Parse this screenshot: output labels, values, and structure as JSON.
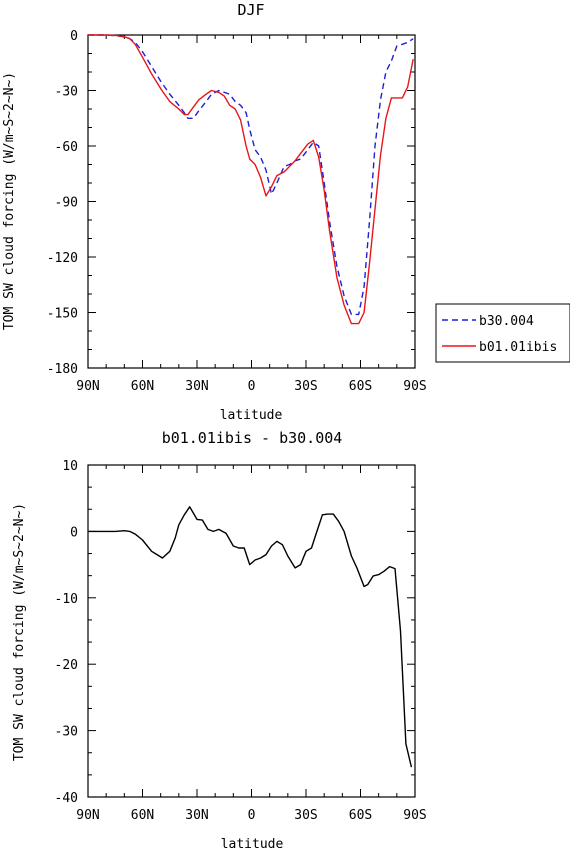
{
  "chart_data": [
    {
      "type": "line",
      "title": "DJF",
      "xlabel": "latitude",
      "ylabel": "TOM SW cloud forcing (W/m~S~2~N~)",
      "xlim": [
        90,
        -90
      ],
      "ylim": [
        -180,
        0
      ],
      "x_ticks": [
        90,
        60,
        30,
        0,
        -30,
        -60,
        -90
      ],
      "x_tick_labels": [
        "90N",
        "60N",
        "30N",
        "0",
        "30S",
        "60S",
        "90S"
      ],
      "y_ticks": [
        0,
        -30,
        -60,
        -90,
        -120,
        -150,
        -180
      ],
      "y_tick_labels": [
        "0",
        "-30",
        "-60",
        "-90",
        "-120",
        "-150",
        "-180"
      ],
      "legend_position": "outside-right",
      "series": [
        {
          "name": "b30.004",
          "color": "#1f1fd6",
          "style": "dashed",
          "x": [
            90,
            80,
            75,
            70,
            67,
            64,
            60,
            55,
            50,
            45,
            40,
            37,
            35,
            32,
            29,
            25,
            22,
            18,
            15,
            12,
            9,
            6,
            3,
            1,
            -2,
            -5,
            -8,
            -11,
            -14,
            -18,
            -21,
            -24,
            -27,
            -31,
            -34,
            -37,
            -40,
            -43,
            -47,
            -51,
            -55,
            -59,
            -62,
            -65,
            -68,
            -71,
            -74,
            -77,
            -80,
            -83,
            -86,
            -89
          ],
          "y": [
            0,
            0,
            -0.3,
            -1,
            -2,
            -4,
            -9,
            -17,
            -25,
            -32,
            -38,
            -42,
            -45,
            -45,
            -41,
            -36,
            -32,
            -30,
            -31,
            -32,
            -36,
            -38,
            -42,
            -51,
            -62,
            -66,
            -73,
            -86,
            -80,
            -71,
            -70,
            -68,
            -67,
            -62,
            -58,
            -60,
            -80,
            -101,
            -125,
            -141,
            -151,
            -151,
            -136,
            -100,
            -60,
            -35,
            -20,
            -14,
            -6,
            -5,
            -4,
            -2
          ]
        },
        {
          "name": "b01.01ibis",
          "color": "#e8161a",
          "style": "solid",
          "x": [
            90,
            80,
            75,
            70,
            67,
            64,
            60,
            55,
            50,
            45,
            40,
            37,
            35,
            32,
            29,
            25,
            22,
            18,
            15,
            12,
            9,
            6,
            3,
            1,
            -2,
            -5,
            -8,
            -11,
            -14,
            -18,
            -21,
            -24,
            -27,
            -31,
            -34,
            -37,
            -40,
            -43,
            -47,
            -51,
            -55,
            -59,
            -62,
            -65,
            -68,
            -71,
            -74,
            -77,
            -80,
            -83,
            -86,
            -89
          ],
          "y": [
            0,
            0,
            -0.2,
            -0.9,
            -2,
            -5,
            -12,
            -21,
            -29,
            -36,
            -40,
            -43,
            -43,
            -39,
            -35,
            -32,
            -30,
            -31,
            -33,
            -38,
            -40,
            -46,
            -60,
            -67,
            -70,
            -77,
            -87,
            -82,
            -76,
            -74,
            -71,
            -68,
            -64,
            -59,
            -57,
            -66,
            -84,
            -106,
            -131,
            -146,
            -156,
            -156,
            -150,
            -123,
            -94,
            -65,
            -45,
            -34,
            -34,
            -34,
            -28,
            -13
          ]
        }
      ]
    },
    {
      "type": "line",
      "title": "b01.01ibis - b30.004",
      "xlabel": "latitude",
      "ylabel": "TOM SW cloud forcing (W/m~S~2~N~)",
      "xlim": [
        90,
        -90
      ],
      "ylim": [
        -40,
        10
      ],
      "x_ticks": [
        90,
        60,
        30,
        0,
        -30,
        -60,
        -90
      ],
      "x_tick_labels": [
        "90N",
        "60N",
        "30N",
        "0",
        "30S",
        "60S",
        "90S"
      ],
      "y_ticks": [
        10,
        0,
        -10,
        -20,
        -30,
        -40
      ],
      "y_tick_labels": [
        "10",
        "0",
        "-10",
        "-20",
        "-30",
        "-40"
      ],
      "series": [
        {
          "color": "#000000",
          "style": "solid",
          "x": [
            90,
            80,
            75,
            70,
            67,
            64,
            60,
            55,
            52,
            49,
            45,
            42,
            40,
            37,
            34,
            30,
            27,
            24,
            21,
            18,
            14,
            10,
            7,
            4,
            1,
            -2,
            -5,
            -8,
            -11,
            -14,
            -17,
            -20,
            -24,
            -27,
            -30,
            -33,
            -36,
            -39,
            -42,
            -45,
            -48,
            -51,
            -55,
            -58,
            -62,
            -64,
            -67,
            -70,
            -73,
            -76,
            -79,
            -82,
            -85,
            -88
          ],
          "y": [
            0,
            0,
            0,
            0.1,
            0,
            -0.4,
            -1.3,
            -3,
            -3.5,
            -4,
            -3,
            -1,
            1,
            2.5,
            3.7,
            1.8,
            1.7,
            0.3,
            0,
            0.3,
            -0.3,
            -2.2,
            -2.5,
            -2.5,
            -5,
            -4.3,
            -4,
            -3.5,
            -2.2,
            -1.5,
            -2,
            -3.7,
            -5.5,
            -5,
            -3,
            -2.5,
            0,
            2.5,
            2.6,
            2.6,
            1.5,
            0,
            -3.7,
            -5.5,
            -8.3,
            -8,
            -6.7,
            -6.5,
            -6,
            -5.3,
            -5.6,
            -15,
            -32,
            -35.5
          ]
        }
      ]
    }
  ]
}
